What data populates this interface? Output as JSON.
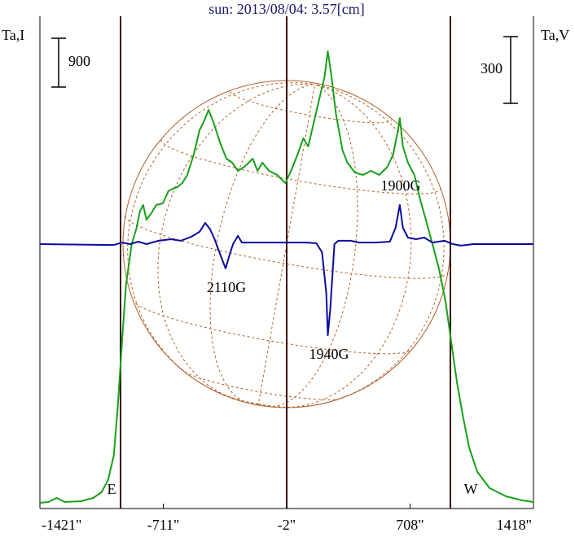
{
  "chart_data": {
    "type": "line",
    "title": "sun: 2013/08/04: 3.57[cm]",
    "ylabel": "Ta,I",
    "y2label": "Ta,V",
    "xlim": [
      -1421,
      1418
    ],
    "xticks": [
      {
        "value": -1421,
        "label": "-1421\""
      },
      {
        "value": -711,
        "label": "-711\""
      },
      {
        "value": -2,
        "label": "-2\""
      },
      {
        "value": 708,
        "label": "708\""
      },
      {
        "value": 1418,
        "label": "1418\""
      }
    ],
    "ylim": [
      -75,
      9000
    ],
    "y2lim": [
      -1190,
      1025
    ],
    "scale_bars": [
      {
        "value": 900,
        "axis": "y"
      },
      {
        "value": 300,
        "axis": "y2"
      }
    ],
    "limb_labels": [
      "E",
      "W"
    ],
    "annotations": [
      "2110G",
      "1940G",
      "1900G"
    ],
    "series": [
      {
        "name": "I",
        "color": "#18a018",
        "axis": "y",
        "x": [
          -1421,
          -1372,
          -1325,
          -1278,
          -1184,
          -1114,
          -1067,
          -1029,
          -996,
          -973,
          -949,
          -926,
          -893,
          -865,
          -846,
          -827,
          -808,
          -780,
          -752,
          -714,
          -682,
          -658,
          -630,
          -602,
          -573,
          -536,
          -503,
          -479,
          -451,
          -423,
          -385,
          -348,
          -315,
          -282,
          -244,
          -197,
          -169,
          -141,
          -103,
          -56,
          -9,
          24,
          61,
          94,
          122,
          155,
          188,
          216,
          235,
          254,
          282,
          320,
          348,
          390,
          437,
          484,
          531,
          578,
          611,
          639,
          649,
          667,
          696,
          733,
          766,
          799,
          837,
          874,
          912,
          945,
          978,
          1011,
          1048,
          1095,
          1166,
          1260,
          1354,
          1418
        ],
        "values": [
          30,
          45,
          120,
          45,
          60,
          120,
          225,
          450,
          900,
          1800,
          3000,
          4050,
          4800,
          5100,
          5400,
          5520,
          5250,
          5370,
          5520,
          5550,
          5775,
          5820,
          5850,
          5925,
          6075,
          6450,
          6900,
          7050,
          7275,
          7050,
          6675,
          6375,
          6300,
          6150,
          6225,
          6375,
          6150,
          6300,
          6150,
          6075,
          5925,
          6150,
          6450,
          6750,
          6600,
          7050,
          7500,
          7875,
          8355,
          7950,
          7200,
          6525,
          6300,
          6120,
          6075,
          6150,
          6075,
          6225,
          6450,
          6900,
          7125,
          6600,
          6300,
          6075,
          5625,
          5250,
          4800,
          4350,
          3750,
          3000,
          2250,
          1650,
          1050,
          600,
          300,
          150,
          75,
          45
        ]
      },
      {
        "name": "V",
        "color": "#0a0aa0",
        "axis": "y2",
        "x": [
          -1421,
          -996,
          -949,
          -902,
          -855,
          -808,
          -738,
          -667,
          -611,
          -550,
          -503,
          -470,
          -442,
          -414,
          -385,
          -353,
          -334,
          -310,
          -282,
          -259,
          -221,
          -56,
          38,
          108,
          169,
          202,
          226,
          235,
          249,
          273,
          296,
          367,
          414,
          508,
          592,
          625,
          649,
          667,
          696,
          743,
          790,
          837,
          907,
          954,
          1001,
          1072,
          1418
        ],
        "values": [
          0,
          -4,
          7,
          0,
          11,
          0,
          15,
          22,
          15,
          33,
          55,
          95,
          66,
          18,
          -44,
          -110,
          -59,
          0,
          37,
          7,
          7,
          7,
          7,
          7,
          4,
          -37,
          -220,
          -410,
          -293,
          0,
          15,
          15,
          7,
          7,
          11,
          73,
          176,
          73,
          29,
          22,
          29,
          7,
          15,
          0,
          -7,
          0,
          0
        ]
      }
    ]
  }
}
